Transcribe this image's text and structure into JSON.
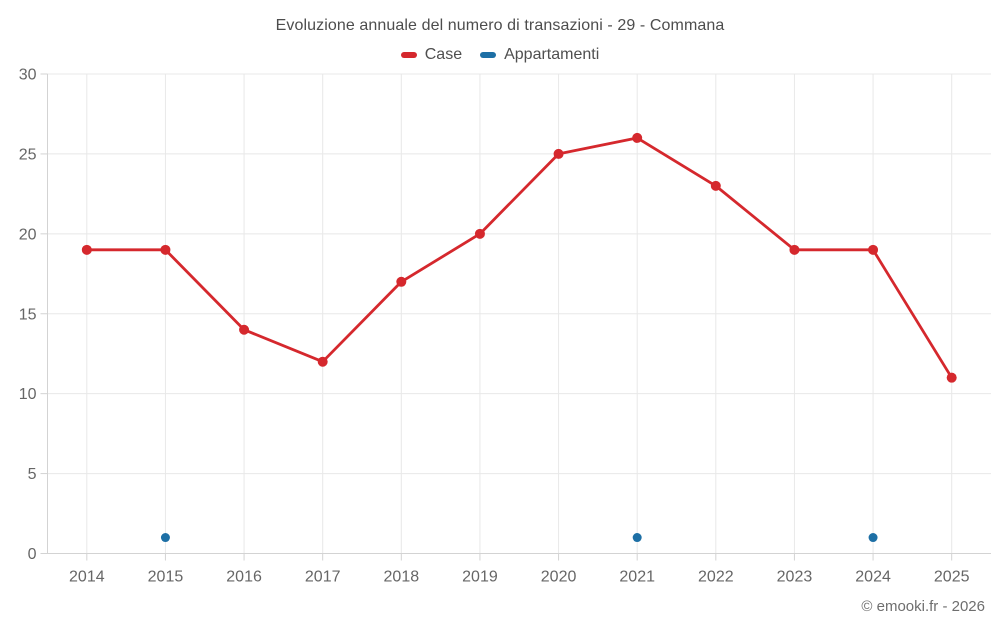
{
  "header": {
    "title": "Evoluzione annuale del numero di transazioni - 29 - Commana"
  },
  "footer": {
    "copyright": "© emooki.fr - 2026"
  },
  "colors": {
    "case_red": "#d5282d",
    "appartamenti_blue": "#1d6fa5",
    "gridline": "#e8e8e8",
    "axis_line": "#d3d3d3",
    "tick_label": "#666666",
    "title_text": "#4d4d4d"
  },
  "chart_data": {
    "type": "line",
    "title": "Evoluzione annuale del numero di transazioni - 29 - Commana",
    "categories": [
      "2014",
      "2015",
      "2016",
      "2017",
      "2018",
      "2019",
      "2020",
      "2021",
      "2022",
      "2023",
      "2024",
      "2025"
    ],
    "series": [
      {
        "name": "Case",
        "color": "#d5282d",
        "type": "line",
        "values": [
          19,
          19,
          14,
          12,
          17,
          20,
          25,
          26,
          23,
          19,
          19,
          11
        ]
      },
      {
        "name": "Appartamenti",
        "color": "#1d6fa5",
        "type": "points",
        "values": [
          null,
          1,
          null,
          null,
          null,
          null,
          null,
          1,
          null,
          null,
          1,
          null
        ]
      }
    ],
    "xlabel": "",
    "ylabel": "",
    "ylim": [
      0,
      30
    ],
    "ytick_step": 5,
    "yticks": [
      0,
      5,
      10,
      15,
      20,
      25,
      30
    ],
    "grid": true,
    "legend_position": "top"
  }
}
